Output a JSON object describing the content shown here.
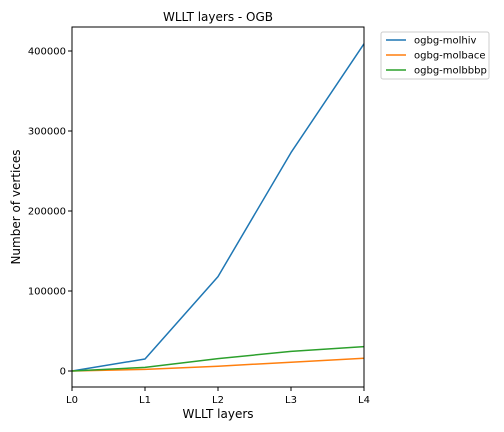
{
  "chart_data": {
    "type": "line",
    "title": "WLLT layers - OGB",
    "xlabel": "WLLT layers",
    "ylabel": "Number of vertices",
    "categories": [
      "L0",
      "L1",
      "L2",
      "L3",
      "L4"
    ],
    "ylim": [
      -20000,
      430000
    ],
    "yticks": [
      0,
      100000,
      200000,
      300000,
      400000
    ],
    "ytick_labels": [
      "0",
      "100000",
      "200000",
      "300000",
      "400000"
    ],
    "grid": false,
    "legend_position": "outside-top-right",
    "series": [
      {
        "name": "ogbg-molhiv",
        "color": "#1f77b4",
        "values": [
          0,
          15000,
          118000,
          273000,
          409000
        ]
      },
      {
        "name": "ogbg-molbace",
        "color": "#ff7f0e",
        "values": [
          0,
          2000,
          6000,
          11000,
          16000
        ]
      },
      {
        "name": "ogbg-molbbbp",
        "color": "#2ca02c",
        "values": [
          0,
          4500,
          15500,
          24500,
          30500
        ]
      }
    ]
  }
}
